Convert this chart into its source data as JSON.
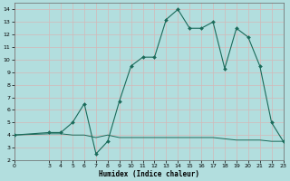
{
  "xlabel": "Humidex (Indice chaleur)",
  "background_color": "#b2dede",
  "grid_color": "#d4b8b8",
  "line_color": "#1a6b5a",
  "curve_x": [
    0,
    3,
    4,
    5,
    6,
    7,
    8,
    9,
    10,
    11,
    12,
    13,
    14,
    15,
    16,
    17,
    18,
    19,
    20,
    21,
    22,
    23
  ],
  "curve_y": [
    4,
    4.2,
    4.2,
    5.0,
    6.5,
    2.5,
    3.5,
    6.7,
    9.5,
    10.2,
    10.2,
    13.2,
    14.0,
    12.5,
    12.5,
    13.0,
    9.3,
    12.5,
    11.8,
    9.5,
    5.0,
    3.5
  ],
  "flat_x": [
    0,
    3,
    4,
    5,
    6,
    7,
    8,
    9,
    10,
    11,
    12,
    13,
    14,
    15,
    16,
    17,
    18,
    19,
    20,
    21,
    22,
    23
  ],
  "flat_y": [
    4,
    4.1,
    4.1,
    4.0,
    4.0,
    3.8,
    4.0,
    3.8,
    3.8,
    3.8,
    3.8,
    3.8,
    3.8,
    3.8,
    3.8,
    3.8,
    3.7,
    3.6,
    3.6,
    3.6,
    3.5,
    3.5
  ],
  "xlim": [
    0,
    23
  ],
  "ylim": [
    2,
    14.5
  ],
  "yticks": [
    2,
    3,
    4,
    5,
    6,
    7,
    8,
    9,
    10,
    11,
    12,
    13,
    14
  ],
  "xticks": [
    0,
    3,
    4,
    5,
    6,
    7,
    8,
    9,
    10,
    11,
    12,
    13,
    14,
    15,
    16,
    17,
    18,
    19,
    20,
    21,
    22,
    23
  ],
  "figsize": [
    3.2,
    2.0
  ],
  "dpi": 100
}
